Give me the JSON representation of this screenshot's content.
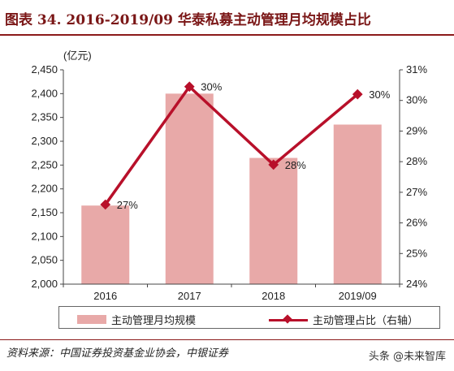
{
  "title": "图表 34. 2016-2019/09 华泰私募主动管理月均规模占比",
  "source": "资料来源：中国证券投资基金业协会，中银证券",
  "watermark": "头条 @未来智库",
  "colors": {
    "bar": "#e8a9a8",
    "line": "#b8102a",
    "title": "#7a1616"
  },
  "chart_data": {
    "type": "bar",
    "categories": [
      "2016",
      "2017",
      "2018",
      "2019/09"
    ],
    "series": [
      {
        "name": "主动管理月均规模",
        "type": "bar",
        "axis": "left",
        "values": [
          2165,
          2400,
          2265,
          2335
        ]
      },
      {
        "name": "主动管理占比（右轴）",
        "type": "line",
        "axis": "right",
        "values": [
          26.6,
          30.45,
          27.9,
          30.2
        ],
        "labels": [
          "27%",
          "30%",
          "28%",
          "30%"
        ]
      }
    ],
    "ylabel": "(亿元)",
    "ylim": [
      2000,
      2450
    ],
    "yticks": [
      "2,000",
      "2,050",
      "2,100",
      "2,150",
      "2,200",
      "2,250",
      "2,300",
      "2,350",
      "2,400",
      "2,450"
    ],
    "y2lim": [
      24,
      31
    ],
    "y2ticks": [
      "24%",
      "25%",
      "26%",
      "27%",
      "28%",
      "29%",
      "30%",
      "31%"
    ],
    "grid": false,
    "legend": "bottom"
  }
}
